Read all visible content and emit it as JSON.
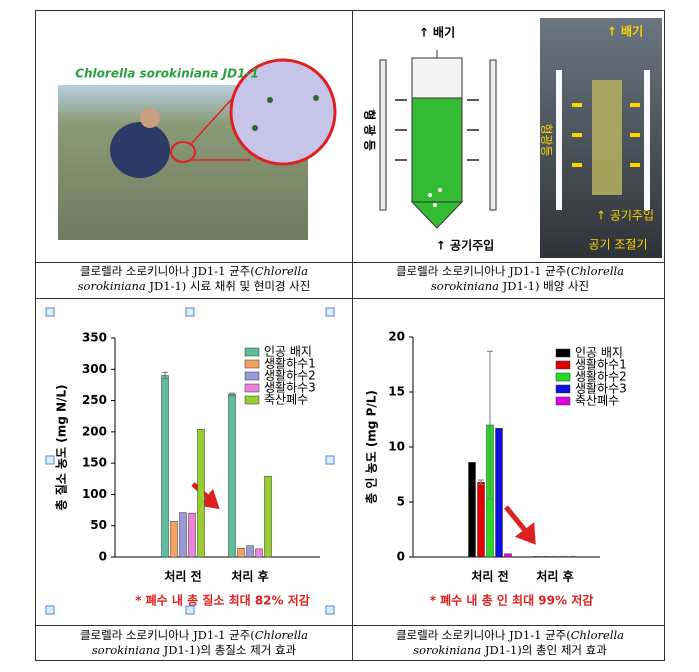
{
  "photos": [
    {
      "label": "Chlorella sorokiniana JD1-1"
    },
    {
      "exhaust": "↑ 배기",
      "lamp": "형 광 등",
      "air_in": "↑ 공기주입"
    },
    {
      "exhaust": "↑ 배기",
      "lamp": "형광등",
      "air_in": "↑ 공기주입",
      "regulator": "공기 조절기"
    }
  ],
  "captions": [
    [
      [
        {
          "text": "클로렐라 소로키니아나 JD1-1 균주("
        },
        {
          "text": "Chlorella",
          "italic": true
        }
      ],
      [
        {
          "text": "sorokiniana",
          "italic": true
        },
        {
          "text": " JD1-1) 시료 채취 및 현미경 사진"
        }
      ]
    ],
    [
      [
        {
          "text": "클로렐라 소로키니아나 JD1-1 균주("
        },
        {
          "text": "Chlorella",
          "italic": true
        }
      ],
      [
        {
          "text": "sorokiniana",
          "italic": true
        },
        {
          "text": " JD1-1) 배양 사진"
        }
      ]
    ],
    [
      [
        {
          "text": "클로렐라 소로키니아나 JD1-1 균주("
        },
        {
          "text": "Chlorella",
          "italic": true
        }
      ],
      [
        {
          "text": "sorokiniana",
          "italic": true
        },
        {
          "text": " JD1-1)의 총질소 제거 효과"
        }
      ]
    ],
    [
      [
        {
          "text": "클로렐라 소로키니아나 JD1-1 균주("
        },
        {
          "text": "Chlorella",
          "italic": true
        }
      ],
      [
        {
          "text": "sorokiniana",
          "italic": true
        },
        {
          "text": " JD1-1)의 총인 제거 효과"
        }
      ]
    ]
  ],
  "chart_data": [
    {
      "type": "bar",
      "ylabel": "총 질소 농도 (mg N/L)",
      "categories": [
        "처리 전",
        "처리 후"
      ],
      "series": [
        {
          "name": "인공 배지",
          "color": "#5dbf9a",
          "values": [
            290,
            260
          ],
          "errors": [
            5,
            2
          ]
        },
        {
          "name": "생활하수1",
          "color": "#f4a460",
          "values": [
            57,
            14
          ]
        },
        {
          "name": "생활하수2",
          "color": "#9a9ad8",
          "values": [
            71,
            18
          ]
        },
        {
          "name": "생활하수3",
          "color": "#ee82d8",
          "values": [
            70,
            13
          ]
        },
        {
          "name": "축산폐수",
          "color": "#9acd32",
          "values": [
            204,
            129
          ]
        }
      ],
      "ylim": [
        0,
        350
      ],
      "yticks": [
        0,
        50,
        100,
        150,
        200,
        250,
        300,
        350
      ],
      "annotation": "* 폐수 내 총 질소 최대 82% 저감"
    },
    {
      "type": "bar",
      "ylabel": "총 인 농도 (mg P/L)",
      "categories": [
        "처리 전",
        "처리 후"
      ],
      "series": [
        {
          "name": "인공 배지",
          "color": "#000000",
          "values": [
            8.6,
            0.05
          ]
        },
        {
          "name": "생활하수1",
          "color": "#e00000",
          "values": [
            6.8,
            0.05
          ],
          "errors": [
            0.2,
            null
          ]
        },
        {
          "name": "생활하수2",
          "color": "#22dd22",
          "values": [
            12,
            0.05
          ],
          "errors": [
            6.7,
            null
          ]
        },
        {
          "name": "생활하수3",
          "color": "#1010e0",
          "values": [
            11.7,
            0.05
          ]
        },
        {
          "name": "축산폐수",
          "color": "#e000e0",
          "values": [
            0.3,
            0.05
          ]
        }
      ],
      "ylim": [
        0,
        20
      ],
      "yticks": [
        0,
        5,
        10,
        15,
        20
      ],
      "annotation": "* 폐수 내 총 인 최대 99% 저감"
    }
  ]
}
